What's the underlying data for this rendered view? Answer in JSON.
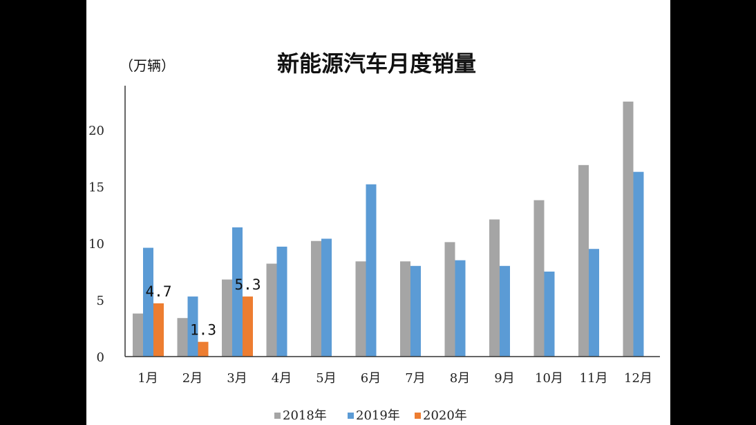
{
  "chart_data": {
    "type": "bar",
    "title": "新能源汽车月度销量",
    "ylabel": "（万辆）",
    "xlabel": "",
    "ylim": [
      0,
      23
    ],
    "yticks": [
      0,
      5,
      10,
      15,
      20
    ],
    "grid": false,
    "legend_position": "bottom",
    "categories": [
      "1月",
      "2月",
      "3月",
      "4月",
      "5月",
      "6月",
      "7月",
      "8月",
      "9月",
      "10月",
      "11月",
      "12月"
    ],
    "series": [
      {
        "name": "2018年",
        "color": "#a5a5a5",
        "values": [
          3.8,
          3.4,
          6.8,
          8.2,
          10.2,
          8.4,
          8.4,
          10.1,
          12.1,
          13.8,
          16.9,
          22.5
        ]
      },
      {
        "name": "2019年",
        "color": "#5b9bd5",
        "values": [
          9.6,
          5.3,
          11.4,
          9.7,
          10.4,
          15.2,
          8.0,
          8.5,
          8.0,
          7.5,
          9.5,
          16.3
        ]
      },
      {
        "name": "2020年",
        "color": "#ed7d31",
        "values": [
          4.7,
          1.3,
          5.3,
          null,
          null,
          null,
          null,
          null,
          null,
          null,
          null,
          null
        ],
        "data_labels": [
          "4.7",
          "1.3",
          "5.3"
        ]
      }
    ]
  }
}
